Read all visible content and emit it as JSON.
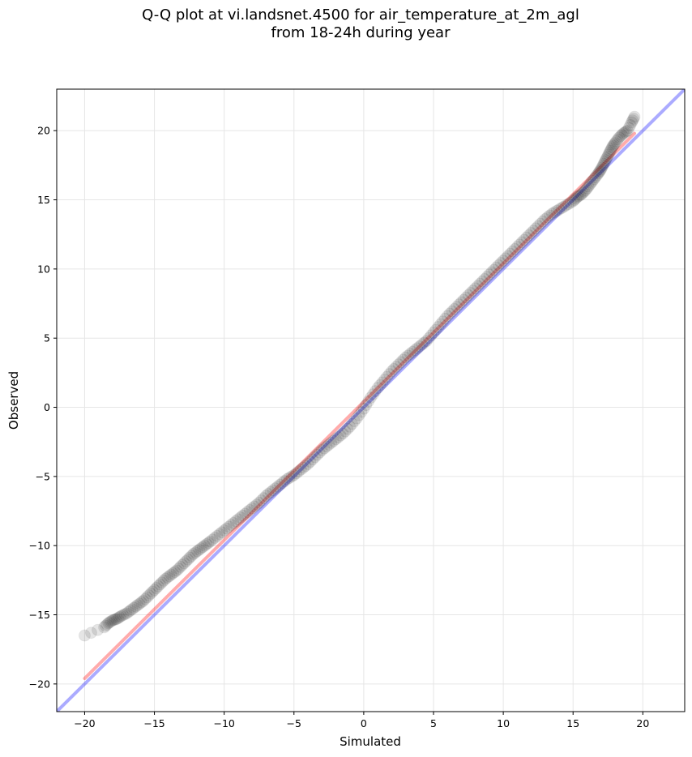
{
  "chart_data": {
    "type": "scatter",
    "title": "Q-Q plot at vi.landsnet.4500 for air_temperature_at_2m_agl\nfrom 18-24h during year",
    "xlabel": "Simulated",
    "ylabel": "Observed",
    "xlim": [
      -22,
      23
    ],
    "ylim": [
      -22,
      23
    ],
    "xticks": [
      -20,
      -15,
      -10,
      -5,
      0,
      5,
      10,
      15,
      20
    ],
    "yticks": [
      -20,
      -15,
      -10,
      -5,
      0,
      5,
      10,
      15,
      20
    ],
    "xtick_labels": [
      "−20",
      "−15",
      "−10",
      "−5",
      "0",
      "5",
      "10",
      "15",
      "20"
    ],
    "ytick_labels": [
      "−20",
      "−15",
      "−10",
      "−5",
      "0",
      "5",
      "10",
      "15",
      "20"
    ],
    "grid": true,
    "reference_line": {
      "x": [
        -22,
        23
      ],
      "y": [
        -22,
        23
      ],
      "color": "#0000ff"
    },
    "fit_line": {
      "x": [
        -20,
        19.4
      ],
      "y": [
        -19.6,
        19.8
      ],
      "color": "#ff0000"
    },
    "quantile_points": {
      "color": "#000000",
      "x": [
        -20,
        -18.6,
        -18.3,
        -18.0,
        -17.7,
        -17.4,
        -17.0,
        -16.6,
        -16.2,
        -15.8,
        -15.4,
        -15.0,
        -14.6,
        -14.2,
        -13.8,
        -13.4,
        -13.0,
        -12.6,
        -12.2,
        -11.8,
        -11.4,
        -11.0,
        -10.5,
        -10.0,
        -9.5,
        -9.0,
        -8.5,
        -8.0,
        -7.5,
        -7.0,
        -6.5,
        -6.0,
        -5.5,
        -5.0,
        -4.5,
        -4.0,
        -3.5,
        -3.0,
        -2.5,
        -2.0,
        -1.5,
        -1.0,
        -0.5,
        0,
        0.5,
        1.0,
        1.5,
        2.0,
        2.5,
        3.0,
        3.5,
        4.0,
        4.5,
        5.0,
        5.5,
        6.0,
        6.5,
        7.0,
        7.5,
        8.0,
        8.5,
        9.0,
        9.5,
        10.0,
        10.5,
        11.0,
        11.5,
        12.0,
        12.5,
        13.0,
        13.5,
        14.0,
        14.5,
        15.0,
        15.3,
        15.6,
        15.9,
        16.2,
        16.5,
        16.8,
        17.0,
        17.2,
        17.4,
        17.6,
        17.8,
        18.0,
        18.3,
        18.6,
        18.9,
        19.2,
        19.4
      ],
      "y": [
        -16.5,
        -15.9,
        -15.6,
        -15.4,
        -15.3,
        -15.1,
        -14.9,
        -14.6,
        -14.3,
        -14.0,
        -13.6,
        -13.2,
        -12.8,
        -12.4,
        -12.1,
        -11.8,
        -11.4,
        -11.0,
        -10.6,
        -10.3,
        -10.0,
        -9.7,
        -9.3,
        -8.9,
        -8.5,
        -8.1,
        -7.7,
        -7.3,
        -6.9,
        -6.4,
        -6.0,
        -5.6,
        -5.2,
        -4.9,
        -4.5,
        -4.1,
        -3.6,
        -3.1,
        -2.7,
        -2.3,
        -1.9,
        -1.4,
        -0.8,
        -0.1,
        0.7,
        1.4,
        2.0,
        2.6,
        3.1,
        3.6,
        4.0,
        4.4,
        4.8,
        5.4,
        6.0,
        6.6,
        7.1,
        7.6,
        8.1,
        8.6,
        9.1,
        9.6,
        10.1,
        10.6,
        11.1,
        11.6,
        12.1,
        12.6,
        13.1,
        13.6,
        14.0,
        14.3,
        14.6,
        14.9,
        15.2,
        15.4,
        15.7,
        16.1,
        16.5,
        16.9,
        17.2,
        17.6,
        18.0,
        18.4,
        18.8,
        19.1,
        19.5,
        19.8,
        20.0,
        20.6,
        21.0
      ]
    }
  }
}
